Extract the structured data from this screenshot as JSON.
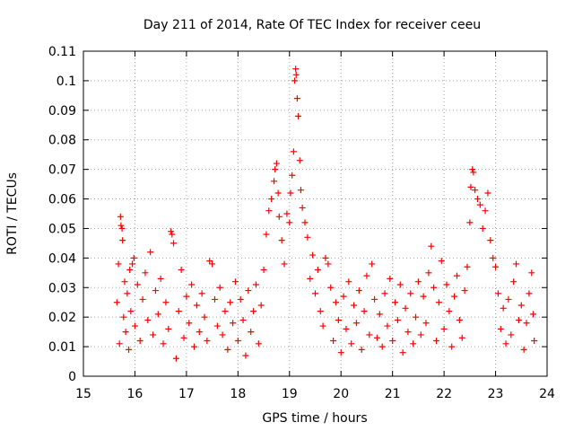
{
  "chart_data": {
    "type": "scatter",
    "title": "Day 211 of 2014, Rate Of TEC Index for receiver ceeu",
    "xlabel": "GPS time / hours",
    "ylabel": "ROTI / TECUs",
    "xlim": [
      15,
      24
    ],
    "ylim": [
      0,
      0.11
    ],
    "grid": true,
    "legend": "none",
    "marker": "+",
    "color": "#ff0000",
    "x_ticks": [
      "15",
      "16",
      "17",
      "18",
      "19",
      "20",
      "21",
      "22",
      "23",
      "24"
    ],
    "y_ticks": [
      "0",
      "0.01",
      "0.02",
      "0.03",
      "0.04",
      "0.05",
      "0.06",
      "0.07",
      "0.08",
      "0.09",
      "0.1",
      "0.11"
    ],
    "series": [
      {
        "name": "ROTI",
        "points": [
          [
            15.65,
            0.025
          ],
          [
            15.68,
            0.038
          ],
          [
            15.7,
            0.011
          ],
          [
            15.72,
            0.054
          ],
          [
            15.73,
            0.051
          ],
          [
            15.75,
            0.05
          ],
          [
            15.76,
            0.046
          ],
          [
            15.78,
            0.02
          ],
          [
            15.8,
            0.032
          ],
          [
            15.82,
            0.015
          ],
          [
            15.85,
            0.028
          ],
          [
            15.88,
            0.009
          ],
          [
            15.9,
            0.036
          ],
          [
            15.92,
            0.022
          ],
          [
            15.95,
            0.038
          ],
          [
            15.98,
            0.04
          ],
          [
            16.0,
            0.017
          ],
          [
            16.05,
            0.031
          ],
          [
            16.1,
            0.012
          ],
          [
            16.15,
            0.026
          ],
          [
            16.2,
            0.035
          ],
          [
            16.25,
            0.019
          ],
          [
            16.3,
            0.042
          ],
          [
            16.35,
            0.014
          ],
          [
            16.4,
            0.029
          ],
          [
            16.45,
            0.021
          ],
          [
            16.5,
            0.033
          ],
          [
            16.55,
            0.011
          ],
          [
            16.6,
            0.025
          ],
          [
            16.65,
            0.016
          ],
          [
            16.7,
            0.049
          ],
          [
            16.72,
            0.048
          ],
          [
            16.75,
            0.045
          ],
          [
            16.8,
            0.006
          ],
          [
            16.85,
            0.022
          ],
          [
            16.9,
            0.036
          ],
          [
            16.95,
            0.013
          ],
          [
            17.0,
            0.027
          ],
          [
            17.05,
            0.018
          ],
          [
            17.1,
            0.031
          ],
          [
            17.15,
            0.01
          ],
          [
            17.2,
            0.024
          ],
          [
            17.25,
            0.015
          ],
          [
            17.3,
            0.028
          ],
          [
            17.35,
            0.02
          ],
          [
            17.4,
            0.012
          ],
          [
            17.45,
            0.039
          ],
          [
            17.5,
            0.038
          ],
          [
            17.55,
            0.026
          ],
          [
            17.6,
            0.017
          ],
          [
            17.65,
            0.03
          ],
          [
            17.7,
            0.014
          ],
          [
            17.75,
            0.022
          ],
          [
            17.8,
            0.009
          ],
          [
            17.85,
            0.025
          ],
          [
            17.9,
            0.018
          ],
          [
            17.95,
            0.032
          ],
          [
            18.0,
            0.012
          ],
          [
            18.05,
            0.026
          ],
          [
            18.1,
            0.019
          ],
          [
            18.15,
            0.007
          ],
          [
            18.2,
            0.029
          ],
          [
            18.25,
            0.015
          ],
          [
            18.3,
            0.022
          ],
          [
            18.35,
            0.031
          ],
          [
            18.4,
            0.011
          ],
          [
            18.45,
            0.024
          ],
          [
            18.5,
            0.036
          ],
          [
            18.55,
            0.048
          ],
          [
            18.6,
            0.056
          ],
          [
            18.65,
            0.06
          ],
          [
            18.7,
            0.066
          ],
          [
            18.72,
            0.07
          ],
          [
            18.75,
            0.072
          ],
          [
            18.78,
            0.062
          ],
          [
            18.8,
            0.054
          ],
          [
            18.85,
            0.046
          ],
          [
            18.9,
            0.038
          ],
          [
            18.95,
            0.055
          ],
          [
            19.0,
            0.052
          ],
          [
            19.02,
            0.062
          ],
          [
            19.05,
            0.068
          ],
          [
            19.08,
            0.076
          ],
          [
            19.1,
            0.1
          ],
          [
            19.12,
            0.104
          ],
          [
            19.13,
            0.102
          ],
          [
            19.15,
            0.094
          ],
          [
            19.17,
            0.088
          ],
          [
            19.2,
            0.073
          ],
          [
            19.22,
            0.063
          ],
          [
            19.25,
            0.057
          ],
          [
            19.3,
            0.052
          ],
          [
            19.35,
            0.047
          ],
          [
            19.4,
            0.033
          ],
          [
            19.45,
            0.041
          ],
          [
            19.5,
            0.028
          ],
          [
            19.55,
            0.036
          ],
          [
            19.6,
            0.022
          ],
          [
            19.65,
            0.017
          ],
          [
            19.7,
            0.04
          ],
          [
            19.75,
            0.038
          ],
          [
            19.8,
            0.03
          ],
          [
            19.85,
            0.012
          ],
          [
            19.9,
            0.025
          ],
          [
            19.95,
            0.019
          ],
          [
            20.0,
            0.008
          ],
          [
            20.05,
            0.027
          ],
          [
            20.1,
            0.016
          ],
          [
            20.15,
            0.032
          ],
          [
            20.2,
            0.011
          ],
          [
            20.25,
            0.024
          ],
          [
            20.3,
            0.018
          ],
          [
            20.35,
            0.029
          ],
          [
            20.4,
            0.009
          ],
          [
            20.45,
            0.022
          ],
          [
            20.5,
            0.034
          ],
          [
            20.55,
            0.014
          ],
          [
            20.6,
            0.038
          ],
          [
            20.65,
            0.026
          ],
          [
            20.7,
            0.013
          ],
          [
            20.75,
            0.021
          ],
          [
            20.8,
            0.01
          ],
          [
            20.85,
            0.028
          ],
          [
            20.9,
            0.017
          ],
          [
            20.95,
            0.033
          ],
          [
            21.0,
            0.012
          ],
          [
            21.05,
            0.025
          ],
          [
            21.1,
            0.019
          ],
          [
            21.15,
            0.031
          ],
          [
            21.2,
            0.008
          ],
          [
            21.25,
            0.023
          ],
          [
            21.3,
            0.015
          ],
          [
            21.35,
            0.028
          ],
          [
            21.4,
            0.011
          ],
          [
            21.45,
            0.02
          ],
          [
            21.5,
            0.032
          ],
          [
            21.55,
            0.014
          ],
          [
            21.6,
            0.027
          ],
          [
            21.65,
            0.018
          ],
          [
            21.7,
            0.035
          ],
          [
            21.75,
            0.044
          ],
          [
            21.8,
            0.03
          ],
          [
            21.85,
            0.012
          ],
          [
            21.9,
            0.025
          ],
          [
            21.95,
            0.039
          ],
          [
            22.0,
            0.016
          ],
          [
            22.05,
            0.031
          ],
          [
            22.1,
            0.022
          ],
          [
            22.15,
            0.01
          ],
          [
            22.2,
            0.027
          ],
          [
            22.25,
            0.034
          ],
          [
            22.3,
            0.019
          ],
          [
            22.35,
            0.013
          ],
          [
            22.4,
            0.029
          ],
          [
            22.45,
            0.037
          ],
          [
            22.5,
            0.052
          ],
          [
            22.52,
            0.064
          ],
          [
            22.55,
            0.07
          ],
          [
            22.57,
            0.069
          ],
          [
            22.6,
            0.063
          ],
          [
            22.65,
            0.06
          ],
          [
            22.7,
            0.058
          ],
          [
            22.75,
            0.05
          ],
          [
            22.8,
            0.056
          ],
          [
            22.85,
            0.062
          ],
          [
            22.9,
            0.046
          ],
          [
            22.95,
            0.04
          ],
          [
            23.0,
            0.037
          ],
          [
            23.05,
            0.028
          ],
          [
            23.1,
            0.016
          ],
          [
            23.15,
            0.023
          ],
          [
            23.2,
            0.011
          ],
          [
            23.25,
            0.026
          ],
          [
            23.3,
            0.014
          ],
          [
            23.35,
            0.032
          ],
          [
            23.4,
            0.038
          ],
          [
            23.45,
            0.019
          ],
          [
            23.5,
            0.024
          ],
          [
            23.55,
            0.009
          ],
          [
            23.6,
            0.018
          ],
          [
            23.65,
            0.028
          ],
          [
            23.7,
            0.035
          ],
          [
            23.73,
            0.021
          ],
          [
            23.75,
            0.012
          ]
        ]
      }
    ]
  }
}
